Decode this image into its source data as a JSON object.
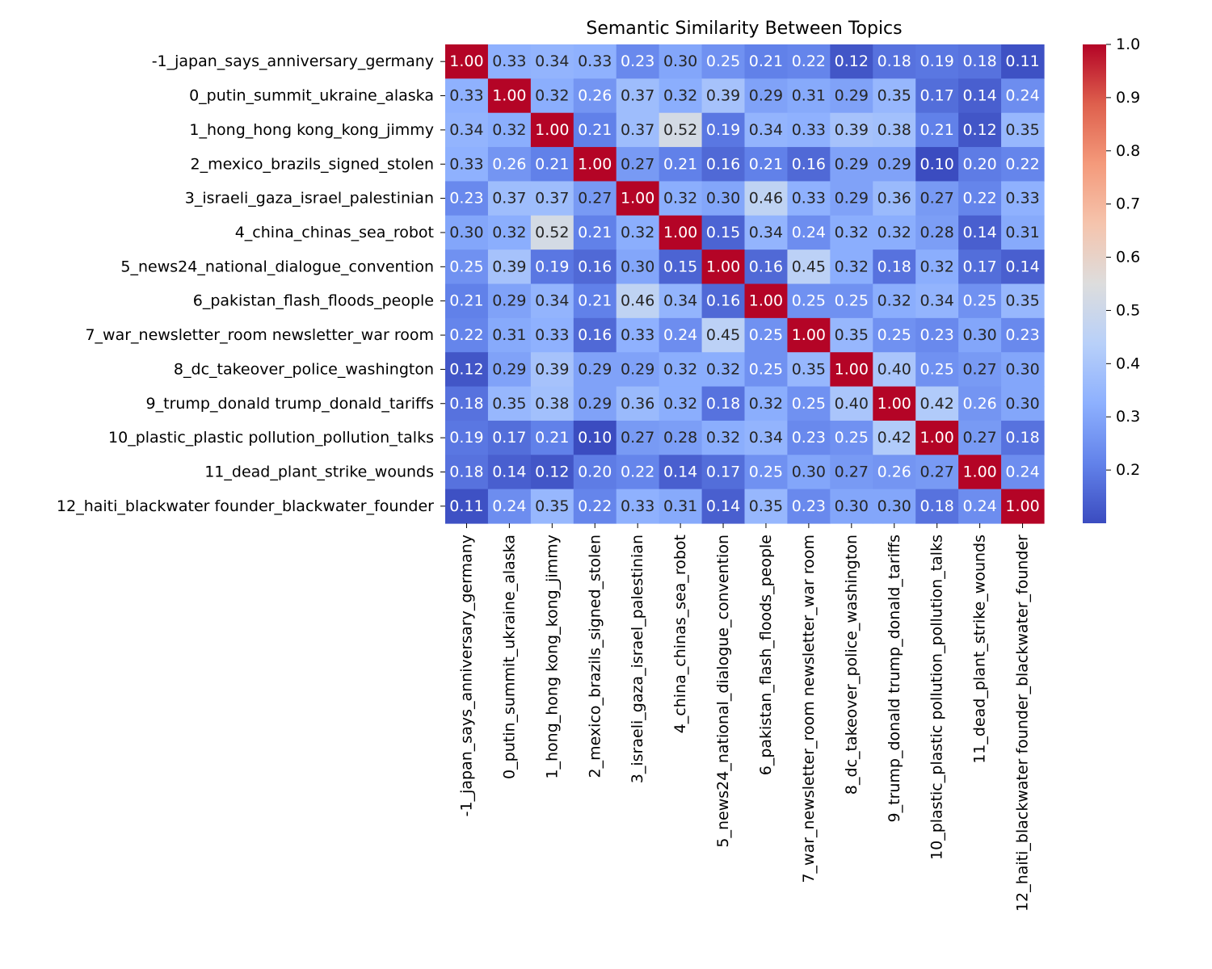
{
  "chart_data": {
    "type": "heatmap",
    "title": "Semantic Similarity Between Topics",
    "xlabel": "",
    "ylabel": "",
    "labels": [
      "-1_japan_says_anniversary_germany",
      "0_putin_summit_ukraine_alaska",
      "1_hong_hong kong_kong_jimmy",
      "2_mexico_brazils_signed_stolen",
      "3_israeli_gaza_israel_palestinian",
      "4_china_chinas_sea_robot",
      "5_news24_national_dialogue_convention",
      "6_pakistan_flash_floods_people",
      "7_war_newsletter_room newsletter_war room",
      "8_dc_takeover_police_washington",
      "9_trump_donald trump_donald_tariffs",
      "10_plastic_plastic pollution_pollution_talks",
      "11_dead_plant_strike_wounds",
      "12_haiti_blackwater founder_blackwater_founder"
    ],
    "values": [
      [
        1.0,
        0.33,
        0.34,
        0.33,
        0.23,
        0.3,
        0.25,
        0.21,
        0.22,
        0.12,
        0.18,
        0.19,
        0.18,
        0.11
      ],
      [
        0.33,
        1.0,
        0.32,
        0.26,
        0.37,
        0.32,
        0.39,
        0.29,
        0.31,
        0.29,
        0.35,
        0.17,
        0.14,
        0.24
      ],
      [
        0.34,
        0.32,
        1.0,
        0.21,
        0.37,
        0.52,
        0.19,
        0.34,
        0.33,
        0.39,
        0.38,
        0.21,
        0.12,
        0.35
      ],
      [
        0.33,
        0.26,
        0.21,
        1.0,
        0.27,
        0.21,
        0.16,
        0.21,
        0.16,
        0.29,
        0.29,
        0.1,
        0.2,
        0.22
      ],
      [
        0.23,
        0.37,
        0.37,
        0.27,
        1.0,
        0.32,
        0.3,
        0.46,
        0.33,
        0.29,
        0.36,
        0.27,
        0.22,
        0.33
      ],
      [
        0.3,
        0.32,
        0.52,
        0.21,
        0.32,
        1.0,
        0.15,
        0.34,
        0.24,
        0.32,
        0.32,
        0.28,
        0.14,
        0.31
      ],
      [
        0.25,
        0.39,
        0.19,
        0.16,
        0.3,
        0.15,
        1.0,
        0.16,
        0.45,
        0.32,
        0.18,
        0.32,
        0.17,
        0.14
      ],
      [
        0.21,
        0.29,
        0.34,
        0.21,
        0.46,
        0.34,
        0.16,
        1.0,
        0.25,
        0.25,
        0.32,
        0.34,
        0.25,
        0.35
      ],
      [
        0.22,
        0.31,
        0.33,
        0.16,
        0.33,
        0.24,
        0.45,
        0.25,
        1.0,
        0.35,
        0.25,
        0.23,
        0.3,
        0.23
      ],
      [
        0.12,
        0.29,
        0.39,
        0.29,
        0.29,
        0.32,
        0.32,
        0.25,
        0.35,
        1.0,
        0.4,
        0.25,
        0.27,
        0.3
      ],
      [
        0.18,
        0.35,
        0.38,
        0.29,
        0.36,
        0.32,
        0.18,
        0.32,
        0.25,
        0.4,
        1.0,
        0.42,
        0.26,
        0.3
      ],
      [
        0.19,
        0.17,
        0.21,
        0.1,
        0.27,
        0.28,
        0.32,
        0.34,
        0.23,
        0.25,
        0.42,
        1.0,
        0.27,
        0.18
      ],
      [
        0.18,
        0.14,
        0.12,
        0.2,
        0.22,
        0.14,
        0.17,
        0.25,
        0.3,
        0.27,
        0.26,
        0.27,
        1.0,
        0.24
      ],
      [
        0.11,
        0.24,
        0.35,
        0.22,
        0.33,
        0.31,
        0.14,
        0.35,
        0.23,
        0.3,
        0.3,
        0.18,
        0.24,
        1.0
      ]
    ],
    "colormap": "coolwarm",
    "colorbar": {
      "range": [
        0.1,
        1.0
      ],
      "ticks": [
        0.2,
        0.3,
        0.4,
        0.5,
        0.6,
        0.7,
        0.8,
        0.9,
        1.0
      ],
      "tick_labels": [
        "0.2",
        "0.3",
        "0.4",
        "0.5",
        "0.6",
        "0.7",
        "0.8",
        "0.9",
        "1.0"
      ]
    },
    "annotations": true,
    "annotation_format": "2 decimals",
    "grid": false
  }
}
